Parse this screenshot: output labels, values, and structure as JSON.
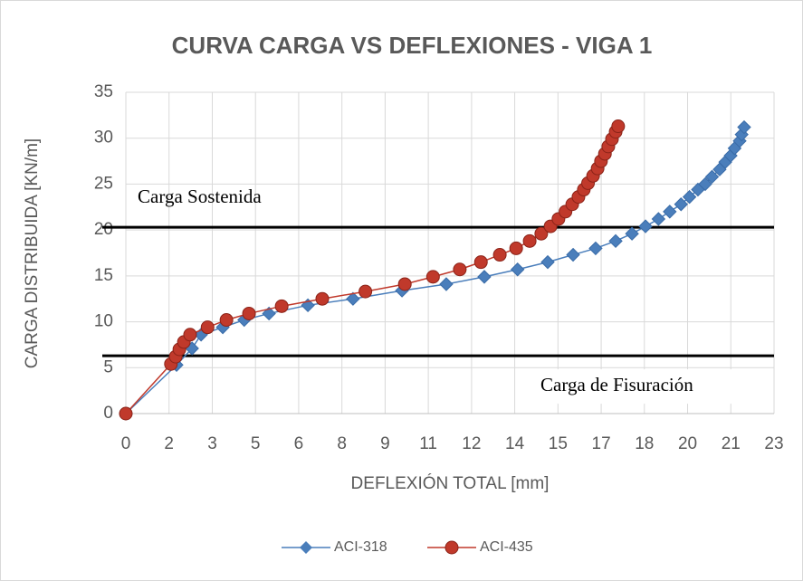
{
  "chart_data": {
    "type": "line",
    "title": "CURVA CARGA VS DEFLEXIONES - VIGA 1",
    "xlabel": "DEFLEXIÓN  TOTAL [mm]",
    "ylabel": "CARGA DISTRIBUIDA [KN/m]",
    "xlim": [
      0,
      23
    ],
    "xticks": [
      0,
      {
        "value": 1.533,
        "label": "2"
      },
      {
        "value": 3.067,
        "label": "3"
      },
      {
        "value": 4.6,
        "label": "5"
      },
      {
        "value": 6.133,
        "label": "6"
      },
      {
        "value": 7.667,
        "label": "8"
      },
      {
        "value": 9.2,
        "label": "9"
      },
      {
        "value": 10.733,
        "label": "11"
      },
      {
        "value": 12.267,
        "label": "12"
      },
      {
        "value": 13.8,
        "label": "14"
      },
      {
        "value": 15.333,
        "label": "15"
      },
      {
        "value": 16.867,
        "label": "17"
      },
      {
        "value": 18.4,
        "label": "18"
      },
      {
        "value": 19.933,
        "label": "20"
      },
      {
        "value": 21.467,
        "label": "21"
      },
      23
    ],
    "ylim": [
      0,
      35
    ],
    "yticks": [
      0,
      5,
      10,
      15,
      20,
      25,
      30,
      35
    ],
    "grid": true,
    "legend": "bottom",
    "reference_lines": [
      {
        "label": "Carga Sostenida",
        "value": 20.3,
        "color": "#000000"
      },
      {
        "label": "Carga de Fisuración",
        "value": 6.3,
        "color": "#000000"
      }
    ],
    "series": [
      {
        "name": "ACI-318",
        "color": "#4a7ebb",
        "marker": "diamond",
        "x": [
          0,
          1.8,
          2.35,
          2.67,
          3.44,
          4.2,
          5.08,
          6.46,
          8.06,
          9.8,
          11.37,
          12.72,
          13.9,
          14.97,
          15.87,
          16.67,
          17.38,
          17.96,
          18.44,
          18.9,
          19.3,
          19.7,
          20.0,
          20.3,
          20.56,
          20.8,
          21.07,
          21.27,
          21.46,
          21.6,
          21.78,
          21.85,
          21.94
        ],
        "values": [
          0,
          5.3,
          7.1,
          8.6,
          9.4,
          10.2,
          10.9,
          11.8,
          12.5,
          13.4,
          14.1,
          14.9,
          15.7,
          16.5,
          17.3,
          18.0,
          18.8,
          19.6,
          20.4,
          21.2,
          22.0,
          22.8,
          23.6,
          24.4,
          25.0,
          25.8,
          26.6,
          27.4,
          28.1,
          28.9,
          29.7,
          30.4,
          31.2
        ]
      },
      {
        "name": "ACI-435",
        "color": "#c0392b",
        "marker": "circle",
        "x": [
          0,
          1.6,
          1.77,
          1.9,
          2.06,
          2.28,
          2.9,
          3.57,
          4.37,
          5.53,
          6.97,
          8.5,
          9.9,
          10.9,
          11.85,
          12.6,
          13.27,
          13.85,
          14.33,
          14.74,
          15.07,
          15.35,
          15.6,
          15.84,
          16.06,
          16.25,
          16.4,
          16.58,
          16.74,
          16.86,
          17.0,
          17.12,
          17.25,
          17.38,
          17.47
        ],
        "values": [
          0,
          5.4,
          6.2,
          7.0,
          7.8,
          8.6,
          9.4,
          10.2,
          10.9,
          11.7,
          12.5,
          13.3,
          14.1,
          14.9,
          15.7,
          16.5,
          17.3,
          18.0,
          18.8,
          19.6,
          20.4,
          21.2,
          22.0,
          22.8,
          23.6,
          24.4,
          25.1,
          25.9,
          26.7,
          27.5,
          28.3,
          29.1,
          29.9,
          30.7,
          31.3
        ]
      }
    ]
  }
}
